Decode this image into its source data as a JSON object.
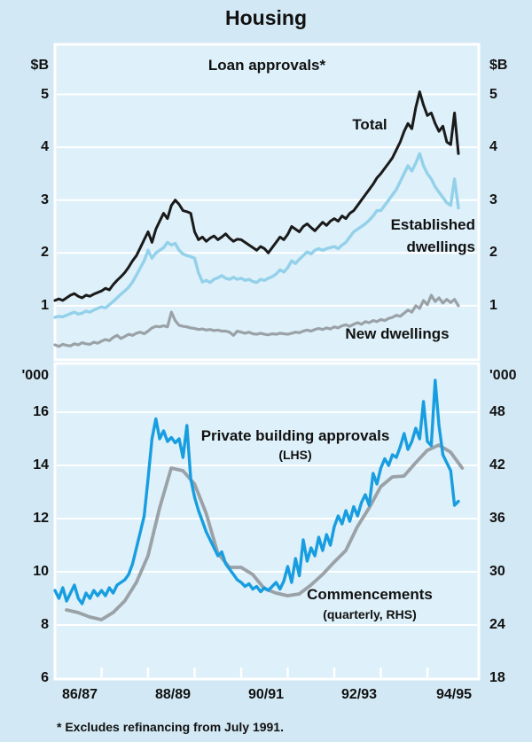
{
  "title": "Housing",
  "footnote": "* Excludes refinancing from July 1991.",
  "top_panel": {
    "subtitle": "Loan approvals*",
    "unit_left": "$B",
    "unit_right": "$B",
    "label_total": "Total",
    "label_established_lines": [
      "Established",
      "dwellings"
    ],
    "label_new": "New dwellings"
  },
  "bottom_panel": {
    "unit_left": "'000",
    "unit_right": "'000",
    "label_approvals": "Private building approvals",
    "label_approvals_sub": "(LHS)",
    "label_commencements": "Commencements",
    "label_commencements_sub": "(quarterly, RHS)"
  },
  "x_axis": {
    "labels": [
      "86/87",
      "88/89",
      "90/91",
      "92/93",
      "94/95"
    ]
  },
  "colors": {
    "background": "#d2e8f4",
    "panel": "#def0f9",
    "grid": "#ffffff",
    "text": "#111111",
    "total": "#1a1a1a",
    "established": "#93d1ea",
    "new_dwellings": "#9aa1a7",
    "approvals": "#189ee0",
    "commencements": "#9aa1a7"
  },
  "chart_data": [
    {
      "type": "line",
      "panel": "top",
      "title": "Loan approvals*",
      "y_unit": "$B",
      "ylim": [
        0,
        5.95
      ],
      "y_ticks": [
        1,
        2,
        3,
        4,
        5
      ],
      "x_range": [
        "Jul 1986",
        "Mar 1995"
      ],
      "frequency": "monthly",
      "grid": true,
      "series": [
        {
          "name": "Total",
          "color_key": "total",
          "values": [
            1.1,
            1.13,
            1.1,
            1.15,
            1.2,
            1.23,
            1.18,
            1.15,
            1.2,
            1.18,
            1.22,
            1.25,
            1.28,
            1.33,
            1.3,
            1.4,
            1.48,
            1.55,
            1.63,
            1.73,
            1.85,
            1.95,
            2.1,
            2.25,
            2.4,
            2.2,
            2.45,
            2.6,
            2.75,
            2.65,
            2.9,
            3.0,
            2.92,
            2.8,
            2.78,
            2.75,
            2.4,
            2.25,
            2.3,
            2.22,
            2.28,
            2.32,
            2.25,
            2.3,
            2.36,
            2.28,
            2.22,
            2.26,
            2.25,
            2.2,
            2.15,
            2.1,
            2.05,
            2.12,
            2.08,
            2.0,
            2.1,
            2.2,
            2.3,
            2.25,
            2.35,
            2.5,
            2.45,
            2.4,
            2.5,
            2.55,
            2.48,
            2.42,
            2.5,
            2.58,
            2.52,
            2.6,
            2.65,
            2.6,
            2.7,
            2.65,
            2.75,
            2.8,
            2.9,
            3.0,
            3.1,
            3.2,
            3.3,
            3.42,
            3.5,
            3.6,
            3.7,
            3.8,
            3.95,
            4.1,
            4.3,
            4.45,
            4.35,
            4.75,
            5.05,
            4.8,
            4.6,
            4.65,
            4.45,
            4.3,
            4.4,
            4.1,
            4.05,
            4.65,
            3.88
          ]
        },
        {
          "name": "Established dwellings",
          "color_key": "established",
          "values": [
            0.78,
            0.8,
            0.79,
            0.82,
            0.85,
            0.88,
            0.84,
            0.86,
            0.9,
            0.88,
            0.92,
            0.95,
            0.98,
            0.96,
            1.02,
            1.08,
            1.15,
            1.22,
            1.28,
            1.35,
            1.45,
            1.58,
            1.72,
            1.85,
            2.05,
            1.9,
            2.0,
            2.05,
            2.1,
            2.2,
            2.15,
            2.18,
            2.05,
            1.98,
            1.95,
            1.93,
            1.9,
            1.62,
            1.45,
            1.48,
            1.44,
            1.5,
            1.53,
            1.57,
            1.52,
            1.5,
            1.54,
            1.5,
            1.52,
            1.48,
            1.5,
            1.46,
            1.44,
            1.5,
            1.48,
            1.52,
            1.55,
            1.6,
            1.68,
            1.64,
            1.72,
            1.85,
            1.8,
            1.88,
            1.95,
            2.02,
            1.98,
            2.05,
            2.08,
            2.05,
            2.08,
            2.1,
            2.12,
            2.08,
            2.15,
            2.2,
            2.3,
            2.4,
            2.45,
            2.5,
            2.55,
            2.62,
            2.7,
            2.8,
            2.8,
            2.9,
            3.0,
            3.1,
            3.2,
            3.35,
            3.5,
            3.65,
            3.55,
            3.7,
            3.88,
            3.65,
            3.5,
            3.4,
            3.25,
            3.15,
            3.05,
            2.95,
            2.9,
            3.4,
            2.85
          ]
        },
        {
          "name": "New dwellings",
          "color_key": "new_dwellings",
          "values": [
            0.26,
            0.23,
            0.27,
            0.25,
            0.24,
            0.28,
            0.26,
            0.3,
            0.28,
            0.27,
            0.31,
            0.29,
            0.33,
            0.36,
            0.34,
            0.4,
            0.44,
            0.38,
            0.42,
            0.46,
            0.44,
            0.48,
            0.5,
            0.47,
            0.52,
            0.58,
            0.61,
            0.6,
            0.62,
            0.6,
            0.88,
            0.72,
            0.63,
            0.61,
            0.6,
            0.58,
            0.57,
            0.55,
            0.56,
            0.54,
            0.55,
            0.53,
            0.54,
            0.52,
            0.52,
            0.5,
            0.44,
            0.52,
            0.5,
            0.48,
            0.5,
            0.47,
            0.46,
            0.48,
            0.46,
            0.45,
            0.47,
            0.46,
            0.48,
            0.47,
            0.46,
            0.48,
            0.5,
            0.49,
            0.52,
            0.54,
            0.52,
            0.55,
            0.57,
            0.55,
            0.58,
            0.56,
            0.6,
            0.58,
            0.62,
            0.64,
            0.61,
            0.65,
            0.68,
            0.65,
            0.7,
            0.68,
            0.72,
            0.7,
            0.74,
            0.72,
            0.76,
            0.78,
            0.82,
            0.8,
            0.86,
            0.92,
            0.88,
            1.0,
            0.95,
            1.1,
            1.02,
            1.2,
            1.08,
            1.15,
            1.05,
            1.12,
            1.06,
            1.12,
            1.0
          ]
        }
      ]
    },
    {
      "type": "line",
      "panel": "bottom",
      "y_unit": "'000",
      "ylim_left": [
        6,
        17.8
      ],
      "y_ticks_left": [
        6,
        8,
        10,
        12,
        14,
        16
      ],
      "ylim_right": [
        18,
        53.4
      ],
      "y_ticks_right": [
        18,
        24,
        30,
        36,
        42,
        48
      ],
      "right_axis_relation": "right = 3 x left",
      "x_range": [
        "Jul 1986",
        "Mar 1995"
      ],
      "grid": true,
      "series": [
        {
          "name": "Private building approvals (LHS)",
          "axis": "left",
          "frequency": "monthly",
          "color_key": "approvals",
          "values": [
            9.3,
            9.0,
            9.4,
            8.9,
            9.2,
            9.5,
            9.0,
            8.8,
            9.2,
            9.0,
            9.3,
            9.1,
            9.3,
            9.1,
            9.4,
            9.2,
            9.5,
            9.6,
            9.7,
            9.9,
            10.3,
            10.9,
            11.5,
            12.1,
            13.5,
            15.0,
            15.75,
            15.0,
            15.3,
            14.9,
            15.05,
            14.85,
            15.0,
            14.3,
            15.5,
            13.5,
            12.8,
            12.3,
            11.9,
            11.5,
            11.2,
            10.9,
            10.6,
            10.75,
            10.3,
            10.1,
            9.9,
            9.7,
            9.6,
            9.45,
            9.55,
            9.35,
            9.45,
            9.25,
            9.4,
            9.3,
            9.45,
            9.6,
            9.35,
            9.65,
            10.2,
            9.6,
            10.5,
            9.85,
            11.2,
            10.4,
            10.9,
            10.6,
            11.3,
            10.8,
            11.4,
            11.0,
            11.7,
            12.1,
            11.8,
            12.3,
            11.9,
            12.45,
            12.1,
            12.6,
            12.9,
            12.5,
            13.7,
            13.3,
            13.9,
            14.25,
            14.0,
            14.4,
            14.3,
            14.7,
            15.2,
            14.6,
            14.9,
            15.4,
            15.0,
            16.4,
            14.9,
            14.75,
            17.2,
            15.5,
            14.4,
            14.1,
            13.8,
            12.5,
            12.65
          ]
        },
        {
          "name": "Commencements (quarterly, RHS)",
          "axis": "right",
          "frequency": "quarterly",
          "color_key": "commencements",
          "values": [
            25.7,
            25.4,
            24.9,
            24.6,
            25.4,
            26.7,
            28.8,
            31.8,
            37.2,
            41.7,
            41.4,
            39.9,
            36.6,
            32.1,
            30.5,
            30.5,
            29.7,
            28.1,
            27.6,
            27.3,
            27.5,
            28.5,
            29.7,
            31.1,
            32.4,
            35.1,
            37.2,
            39.6,
            40.7,
            40.8,
            42.3,
            43.7,
            44.3,
            43.5,
            41.7
          ]
        }
      ]
    }
  ]
}
